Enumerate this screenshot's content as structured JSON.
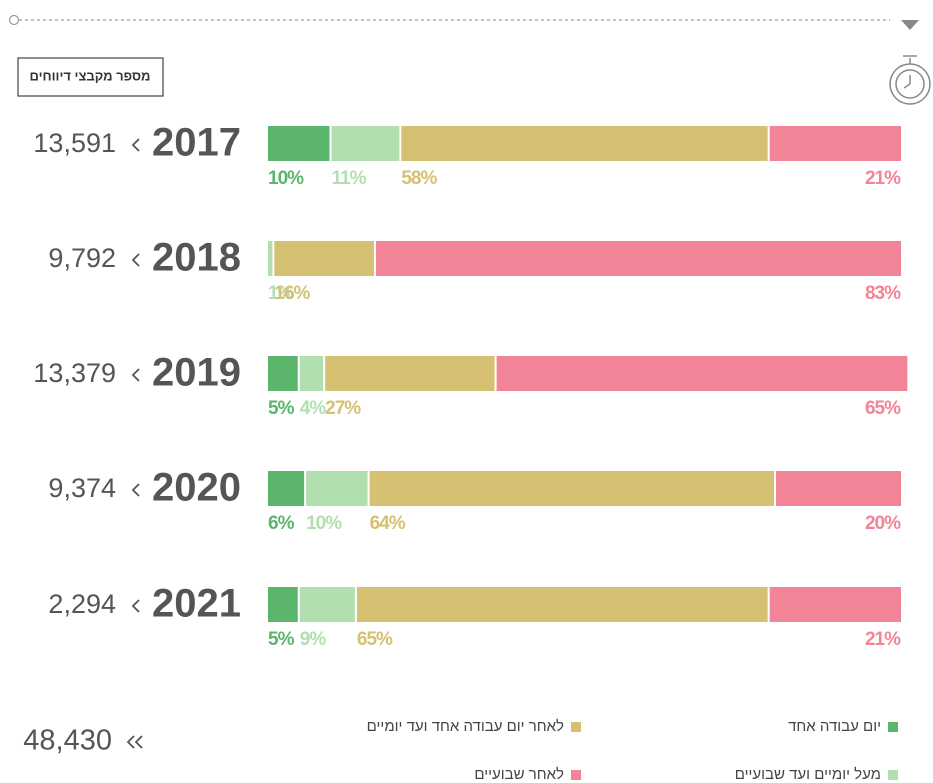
{
  "button": "מספר מקבצי דיווחים",
  "total": "48,430",
  "chart_data": {
    "type": "bar",
    "orientation": "horizontal",
    "stacked": true,
    "categories": [
      "2017",
      "2018",
      "2019",
      "2020",
      "2021"
    ],
    "counts": [
      "13,591",
      "9,792",
      "13,379",
      "9,374",
      "2,294"
    ],
    "series": [
      {
        "name": "יום עבודה אחד",
        "color": "#5bb56b",
        "values": [
          10,
          null,
          5,
          6,
          5
        ],
        "value_labels": [
          "10%",
          null,
          "5%",
          "6%",
          "5%"
        ]
      },
      {
        "name": "מעל יומיים ועד שבועיים",
        "color": "#b2dfb0",
        "values": [
          11,
          1,
          4,
          10,
          9
        ],
        "value_labels": [
          "11%",
          "1%",
          "4%",
          "10%",
          "9%"
        ]
      },
      {
        "name": "לאחר יום עבודה אחד ועד יומיים",
        "color": "#d6c071",
        "values": [
          58,
          16,
          27,
          64,
          65
        ],
        "value_labels": [
          "58%",
          "16%",
          "27%",
          "64%",
          "65%"
        ]
      },
      {
        "name": "לאחר שבועיים",
        "color": "#f28497",
        "values": [
          21,
          83,
          65,
          20,
          21
        ],
        "value_labels": [
          "21%",
          "83%",
          "65%",
          "20%",
          "21%"
        ]
      }
    ]
  }
}
